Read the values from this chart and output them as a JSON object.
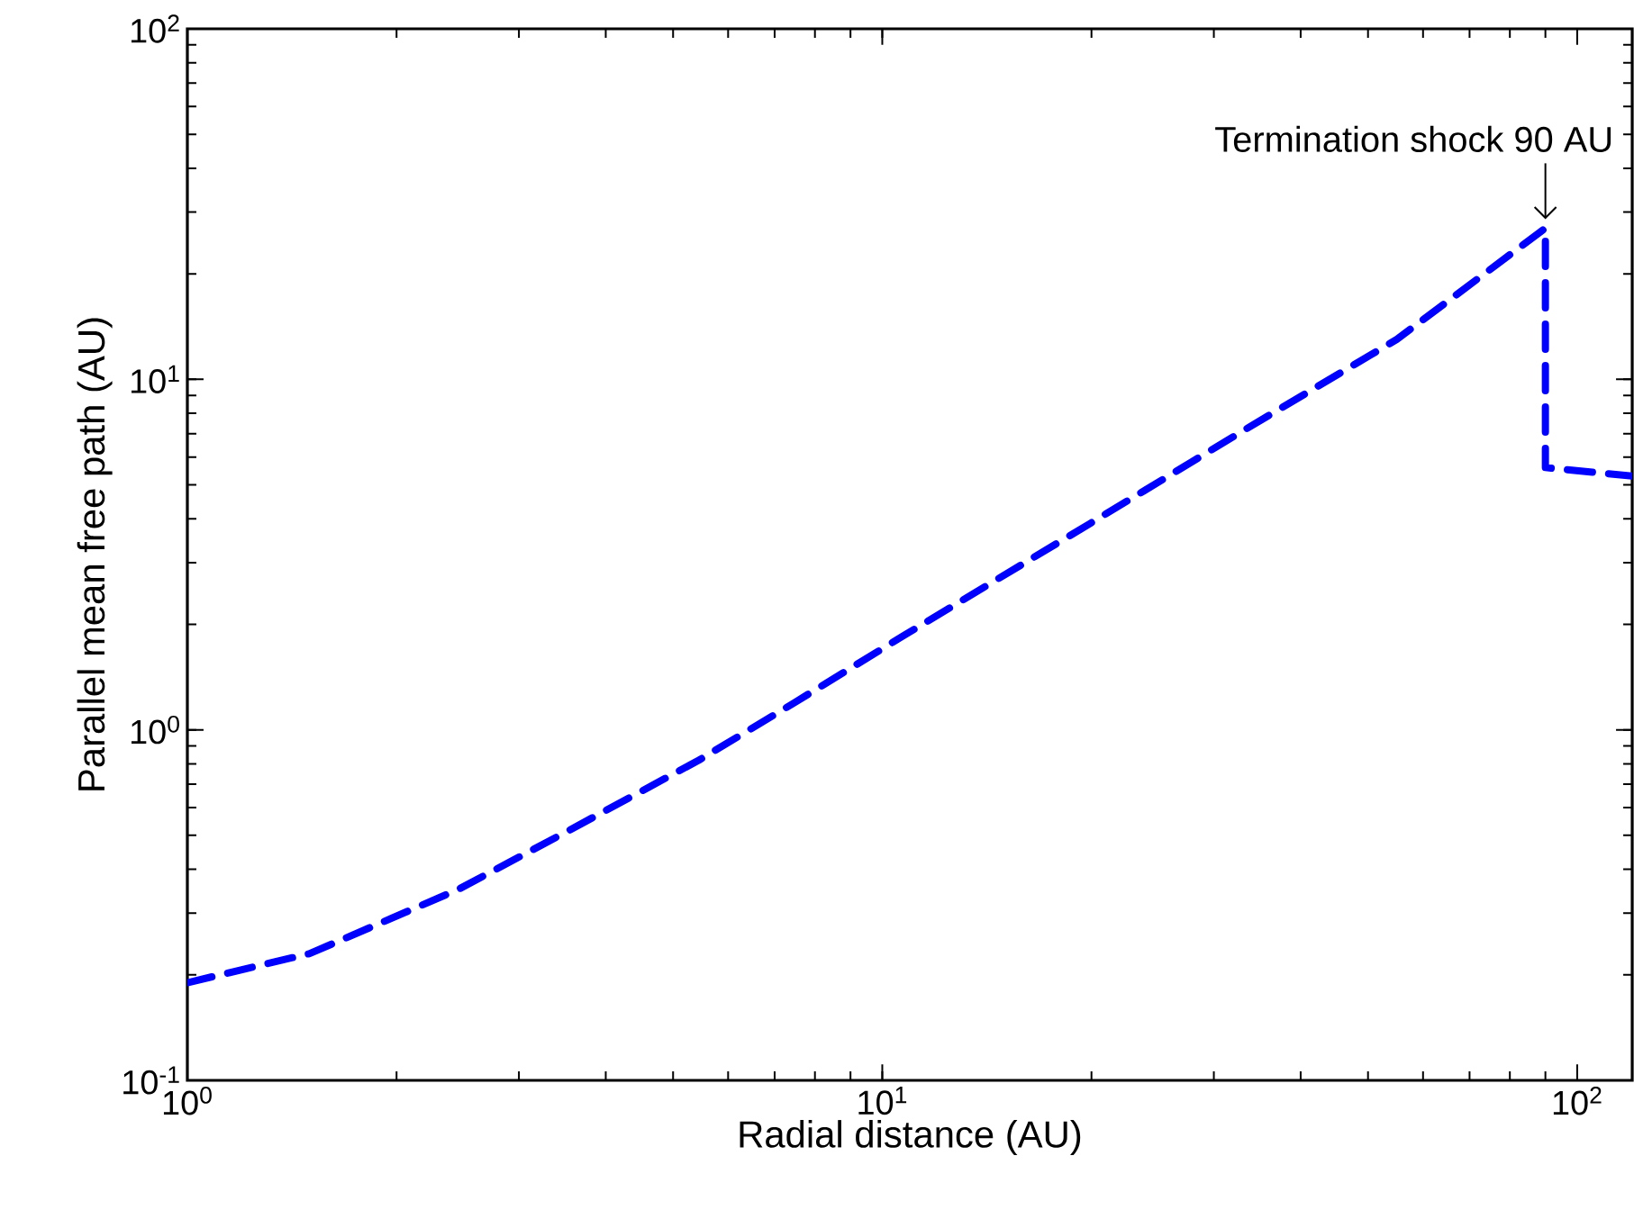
{
  "chart_data": {
    "type": "line",
    "xlabel": "Radial distance (AU)",
    "ylabel": "Parallel mean free path (AU)",
    "log": "xy",
    "line_style": "dashed",
    "color": "#0000ff",
    "x": [
      1,
      1.5,
      2.45,
      3.5,
      5.45,
      7.5,
      10.7,
      20,
      33.7,
      55,
      90,
      90,
      120
    ],
    "values": [
      0.19,
      0.23,
      0.35,
      0.51,
      0.82,
      1.2,
      1.85,
      3.9,
      7.3,
      13,
      27,
      5.6,
      5.3
    ],
    "xlim": [
      1,
      120
    ],
    "ylim": [
      0.1,
      100
    ],
    "xticks": [
      {
        "value": 1,
        "label": "10$^{0}$"
      },
      {
        "value": 10,
        "label": "10$^{1}$"
      },
      {
        "value": 100,
        "label": "10$^{2}$"
      }
    ],
    "yticks": [
      {
        "value": 0.1,
        "label": "10$^{-1}$"
      },
      {
        "value": 1,
        "label": "10$^{0}$"
      },
      {
        "value": 10,
        "label": "10$^{1}$"
      },
      {
        "value": 100,
        "label": "10$^{2}$"
      }
    ],
    "annotations": [
      {
        "text": "Termination shock 90 AU",
        "x": 90,
        "y": 27
      }
    ]
  }
}
